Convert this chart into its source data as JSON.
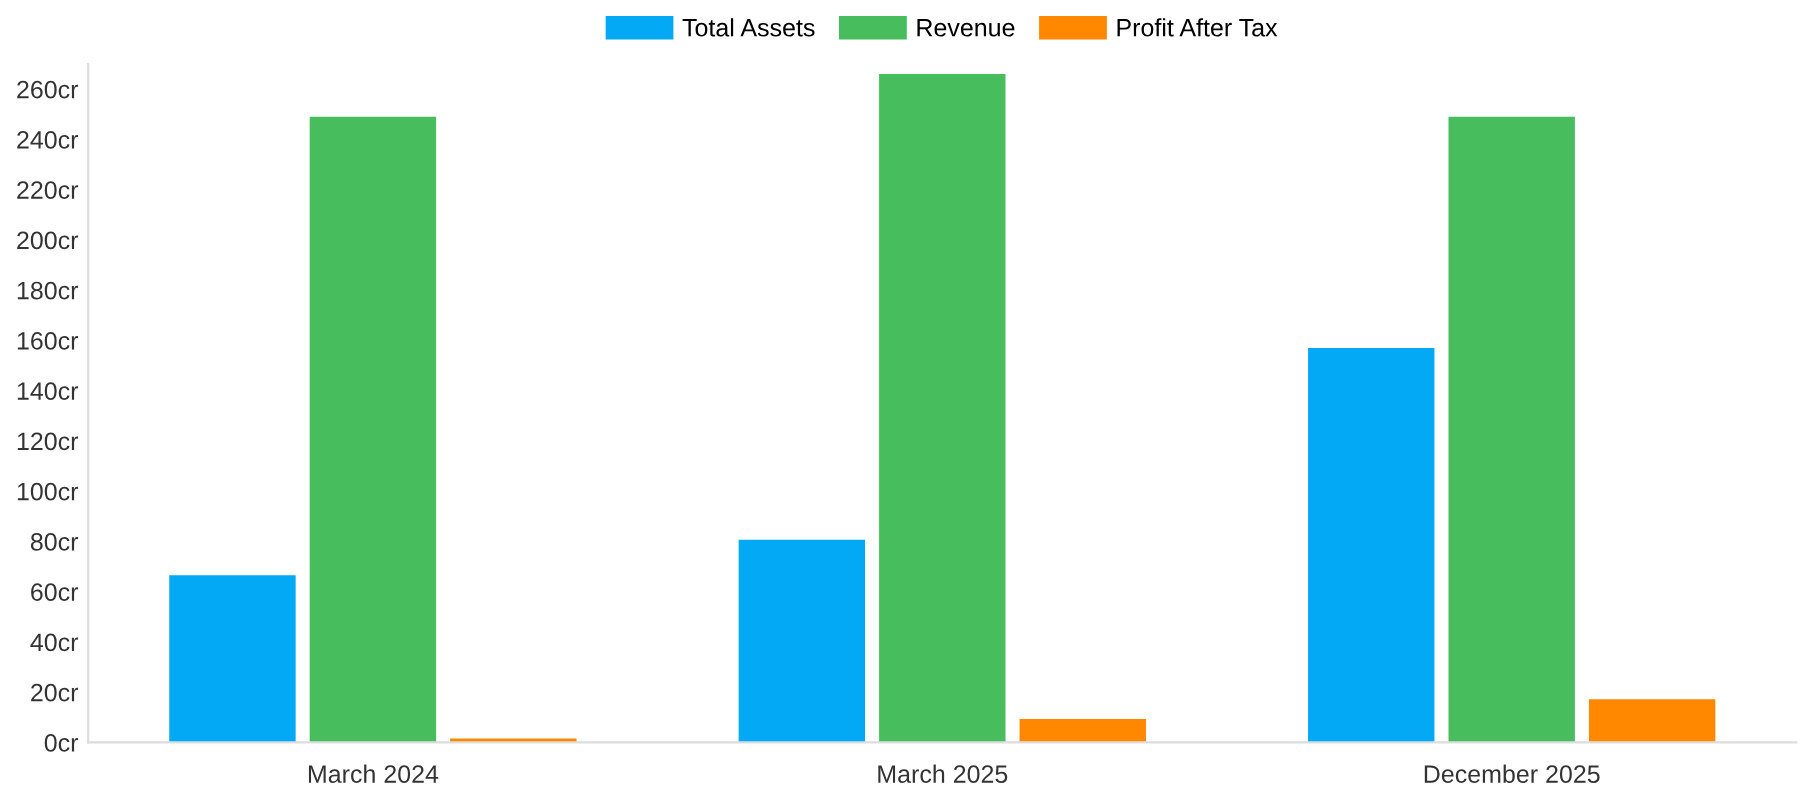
{
  "chart_data": {
    "type": "bar",
    "categories": [
      "March 2024",
      "March 2025",
      "December 2025"
    ],
    "series": [
      {
        "name": "Total Assets",
        "color": "#03a9f4",
        "values": [
          66.5,
          80.7,
          157
        ]
      },
      {
        "name": "Revenue",
        "color": "#47bd5e",
        "values": [
          249,
          266,
          249
        ]
      },
      {
        "name": "Profit After Tax",
        "color": "#ff8800",
        "values": [
          1.6,
          9.3,
          17.2
        ]
      }
    ],
    "ylim": [
      0,
      270
    ],
    "yticks": [
      {
        "value": 0,
        "label": "0cr"
      },
      {
        "value": 20,
        "label": "20cr"
      },
      {
        "value": 40,
        "label": "40cr"
      },
      {
        "value": 60,
        "label": "60cr"
      },
      {
        "value": 80,
        "label": "80cr"
      },
      {
        "value": 100,
        "label": "100cr"
      },
      {
        "value": 120,
        "label": "120cr"
      },
      {
        "value": 140,
        "label": "140cr"
      },
      {
        "value": 160,
        "label": "160cr"
      },
      {
        "value": 180,
        "label": "180cr"
      },
      {
        "value": 200,
        "label": "200cr"
      },
      {
        "value": 220,
        "label": "220cr"
      },
      {
        "value": 240,
        "label": "240cr"
      },
      {
        "value": 260,
        "label": "260cr"
      }
    ],
    "grid": false,
    "legend": "top"
  }
}
